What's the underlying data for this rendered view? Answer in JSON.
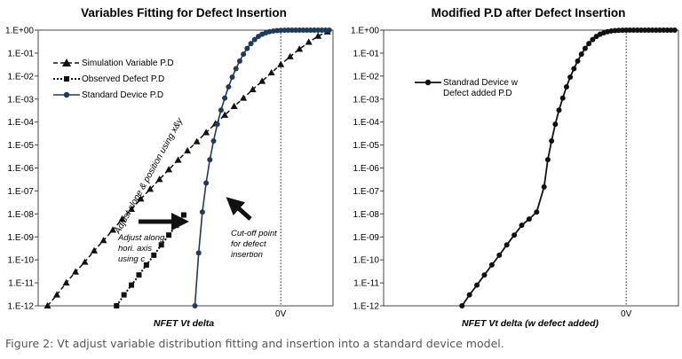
{
  "caption": "Figure 2: Vt adjust variable distribution fitting and insertion into a standard device model.",
  "chart_data": [
    {
      "type": "line",
      "title": "Variables Fitting for Defect Insertion",
      "xlabel": "NFET Vt delta",
      "ylabel": "",
      "yscale": "log",
      "ylim": [
        1e-12,
        1
      ],
      "xlim": [
        -1.3,
        0.28
      ],
      "x_ticks": [
        {
          "value": 0,
          "label": "0V"
        }
      ],
      "y_ticks": [
        "1.E-12",
        "1.E-11",
        "1.E-10",
        "1.E-09",
        "1.E-08",
        "1.E-07",
        "1.E-06",
        "1.E-05",
        "1.E-04",
        "1.E-03",
        "1.E-02",
        "1.E-01",
        "1.E+00"
      ],
      "grid": "vertical dotted line at 0V",
      "legend": "top-left",
      "series": [
        {
          "name": "Simulation Variable P.D",
          "style": "dashed line, triangle markers",
          "x": [
            -1.25,
            -1.2,
            -1.15,
            -1.1,
            -1.05,
            -1.0,
            -0.95,
            -0.9,
            -0.85,
            -0.8,
            -0.75,
            -0.7,
            -0.65,
            -0.6,
            -0.55,
            -0.5,
            -0.45,
            -0.4,
            -0.35,
            -0.3,
            -0.25,
            -0.2,
            -0.15,
            -0.1,
            -0.05,
            0.0,
            0.05,
            0.1,
            0.15,
            0.2,
            0.25
          ],
          "y": [
            1e-12,
            3e-12,
            1e-11,
            3e-11,
            8e-11,
            2.5e-10,
            7e-10,
            2e-09,
            6e-09,
            1.6e-08,
            4.5e-08,
            1.2e-07,
            3.2e-07,
            8.5e-07,
            2.2e-06,
            5.6e-06,
            1.4e-05,
            3.5e-05,
            8.5e-05,
            0.0002,
            0.00048,
            0.0011,
            0.0026,
            0.006,
            0.014,
            0.032,
            0.07,
            0.15,
            0.3,
            0.55,
            0.85
          ]
        },
        {
          "name": "Observed Defect P.D",
          "style": "dotted line, square markers",
          "x": [
            -0.88,
            -0.84,
            -0.8,
            -0.76,
            -0.72,
            -0.68,
            -0.64,
            -0.6,
            -0.56,
            -0.52
          ],
          "y": [
            1e-12,
            3e-12,
            8e-12,
            2.2e-11,
            6e-11,
            1.6e-10,
            4.5e-10,
            1.2e-09,
            3.2e-09,
            9e-09
          ]
        },
        {
          "name": "Standard Device P.D",
          "style": "solid line, circle markers",
          "x": [
            -0.46,
            -0.44,
            -0.42,
            -0.4,
            -0.38,
            -0.36,
            -0.34,
            -0.32,
            -0.3,
            -0.28,
            -0.26,
            -0.24,
            -0.22,
            -0.2,
            -0.18,
            -0.16,
            -0.14,
            -0.12,
            -0.1,
            -0.08,
            -0.06,
            -0.04,
            -0.02,
            0.0,
            0.02,
            0.04,
            0.06,
            0.08,
            0.1,
            0.12,
            0.14,
            0.16,
            0.18,
            0.2,
            0.22,
            0.24,
            0.26
          ],
          "y": [
            1e-12,
            2e-10,
            1.2e-08,
            2.2e-07,
            2.3e-06,
            1.5e-05,
            8e-05,
            0.00033,
            0.0011,
            0.0034,
            0.009,
            0.021,
            0.045,
            0.09,
            0.16,
            0.26,
            0.39,
            0.53,
            0.66,
            0.77,
            0.86,
            0.92,
            0.96,
            0.98,
            0.99,
            0.995,
            0.998,
            0.999,
            1,
            1,
            1,
            1,
            1,
            1,
            1,
            1,
            1
          ]
        }
      ],
      "annotations": [
        "Adjust slope & position using x&y",
        "Adjust along hori. axis using c",
        "Cut-off point for defect insertion"
      ]
    },
    {
      "type": "line",
      "title": "Modified P.D after Defect Insertion",
      "xlabel": "NFET Vt delta (w defect added)",
      "ylabel": "",
      "yscale": "log",
      "ylim": [
        1e-12,
        1
      ],
      "xlim": [
        -1.3,
        0.28
      ],
      "x_ticks": [
        {
          "value": 0,
          "label": "0V"
        }
      ],
      "y_ticks": [
        "1.E-12",
        "1.E-11",
        "1.E-10",
        "1.E-09",
        "1.E-08",
        "1.E-07",
        "1.E-06",
        "1.E-05",
        "1.E-04",
        "1.E-03",
        "1.E-02",
        "1.E-01",
        "1.E+00"
      ],
      "grid": "vertical dotted line at 0V",
      "legend": "top-left",
      "series": [
        {
          "name": "Standrad Device w Defect added P.D",
          "style": "solid line, circle markers",
          "x": [
            -0.88,
            -0.84,
            -0.8,
            -0.76,
            -0.72,
            -0.68,
            -0.64,
            -0.6,
            -0.56,
            -0.52,
            -0.48,
            -0.44,
            -0.42,
            -0.4,
            -0.38,
            -0.36,
            -0.34,
            -0.32,
            -0.3,
            -0.28,
            -0.26,
            -0.24,
            -0.22,
            -0.2,
            -0.18,
            -0.16,
            -0.14,
            -0.12,
            -0.1,
            -0.08,
            -0.06,
            -0.04,
            -0.02,
            0.0,
            0.02,
            0.04,
            0.06,
            0.08,
            0.1,
            0.12,
            0.14,
            0.16,
            0.18,
            0.2,
            0.22,
            0.24,
            0.26
          ],
          "y": [
            1e-12,
            3e-12,
            8e-12,
            2.2e-11,
            6e-11,
            1.6e-10,
            4.5e-10,
            1.2e-09,
            3.2e-09,
            6e-09,
            1.2e-08,
            1.5e-07,
            2.3e-06,
            1.5e-05,
            8e-05,
            0.00033,
            0.0011,
            0.0034,
            0.009,
            0.021,
            0.045,
            0.09,
            0.16,
            0.26,
            0.39,
            0.53,
            0.66,
            0.77,
            0.86,
            0.92,
            0.96,
            0.98,
            0.99,
            0.995,
            0.998,
            0.999,
            1,
            1,
            1,
            1,
            1,
            1,
            1,
            1,
            1,
            1,
            1
          ]
        }
      ],
      "annotations": []
    }
  ]
}
